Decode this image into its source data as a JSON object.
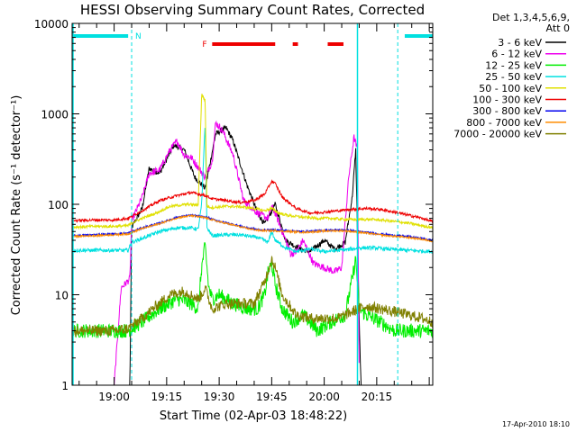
{
  "chart_data": {
    "type": "line",
    "title": "HESSI Observing Summary Count Rates, Corrected",
    "xlabel": "Start Time (02-Apr-03 18:48:22)",
    "ylabel": "Corrected Count Rate (s⁻¹ detector⁻¹)",
    "x_unit": "minutes after 18:48:22",
    "xlim": [
      0,
      103
    ],
    "ylim": [
      1,
      10000
    ],
    "y_scale": "log",
    "grid": false,
    "x_ticks": [
      {
        "t": 12,
        "label": "19:00"
      },
      {
        "t": 27,
        "label": "19:15"
      },
      {
        "t": 42,
        "label": "19:30"
      },
      {
        "t": 57,
        "label": "19:45"
      },
      {
        "t": 72,
        "label": "20:00"
      },
      {
        "t": 87,
        "label": "20:15"
      }
    ],
    "y_ticks": [
      {
        "v": 1,
        "label": "1"
      },
      {
        "v": 10,
        "label": "10"
      },
      {
        "v": 100,
        "label": "100"
      },
      {
        "v": 1000,
        "label": "1000"
      },
      {
        "v": 10000,
        "label": "10000"
      }
    ],
    "legend_header": [
      "Det 1,3,4,5,6,9,",
      "Att 0"
    ],
    "legend_position": "right",
    "annotations": {
      "night_label": "N",
      "flare_label": "F",
      "night_bars": [
        [
          0,
          16
        ],
        [
          95,
          103
        ]
      ],
      "night_color": "#00e0e0",
      "night_boundaries": [
        17,
        93
      ],
      "flare_bars": [
        [
          40,
          58
        ],
        [
          63,
          64.5
        ],
        [
          73,
          77.5
        ]
      ],
      "flare_color": "#ee0000"
    },
    "footer_timestamp": "17-Apr-2010 18:10",
    "series": [
      {
        "name": "3 - 6 keV",
        "color": "#000000",
        "x": [
          0,
          6,
          12,
          16.5,
          17,
          20,
          22,
          25,
          29,
          32,
          35,
          38,
          41,
          44,
          46,
          50,
          53,
          55,
          58,
          61,
          65,
          68,
          72,
          75,
          78,
          80,
          81,
          82,
          82.5,
          84,
          88,
          92,
          96,
          100,
          103
        ],
        "y": [
          1,
          1,
          1,
          1,
          55,
          90,
          250,
          220,
          450,
          400,
          200,
          150,
          600,
          700,
          500,
          160,
          80,
          60,
          100,
          40,
          32,
          30,
          40,
          32,
          38,
          120,
          400,
          5,
          1,
          1,
          1,
          1,
          1,
          1,
          1
        ]
      },
      {
        "name": "6 - 12 keV",
        "color": "#ee00ee",
        "x": [
          12,
          14,
          15,
          16.5,
          17,
          20,
          22,
          25,
          28,
          30,
          32,
          34,
          38,
          40,
          41,
          43,
          46,
          49,
          53,
          56,
          57,
          58,
          61,
          62.5,
          64,
          66,
          69,
          72,
          75,
          77,
          79,
          80.5,
          81.5,
          82
        ],
        "y": [
          1,
          12,
          13,
          15,
          65,
          120,
          220,
          240,
          400,
          500,
          350,
          330,
          200,
          300,
          800,
          650,
          350,
          110,
          80,
          70,
          95,
          80,
          40,
          28,
          30,
          40,
          22,
          20,
          18,
          20,
          200,
          550,
          400,
          1
        ]
      },
      {
        "name": "12 - 25 keV",
        "color": "#00ee00",
        "x": [
          0,
          10,
          16,
          20,
          25,
          30,
          34,
          36,
          37,
          38,
          39,
          40,
          42,
          46,
          50,
          53,
          55,
          56,
          57,
          58,
          60,
          63,
          66,
          70,
          74,
          78,
          80,
          81,
          82,
          84,
          88,
          92,
          96,
          100,
          103
        ],
        "y": [
          4,
          4,
          4,
          5,
          7,
          9,
          8,
          7,
          20,
          35,
          12,
          9,
          10,
          8,
          7,
          7,
          10,
          18,
          22,
          13,
          7,
          5,
          6,
          4,
          5,
          6,
          15,
          25,
          7,
          6,
          5,
          4,
          4,
          4,
          4
        ]
      },
      {
        "name": "25 - 50 keV",
        "color": "#00e0e0",
        "x": [
          0,
          6,
          12,
          16,
          17,
          20,
          25,
          30,
          34,
          36,
          37,
          38,
          38.5,
          40,
          44,
          48,
          53,
          56,
          57,
          58,
          61,
          64,
          68,
          72,
          76,
          80,
          82,
          86,
          90,
          96,
          103
        ],
        "y": [
          31,
          31,
          31,
          31,
          38,
          42,
          50,
          55,
          55,
          53,
          100,
          850,
          55,
          45,
          46,
          46,
          43,
          38,
          50,
          40,
          33,
          30,
          32,
          30,
          31,
          32,
          33,
          33,
          32,
          31,
          30
        ]
      },
      {
        "name": "50 - 100 keV",
        "color": "#e0e000",
        "x": [
          0,
          6,
          12,
          16,
          17,
          20,
          24,
          28,
          33,
          36,
          37,
          38,
          38.5,
          40,
          44,
          48,
          52,
          55,
          57,
          59,
          62,
          66,
          70,
          74,
          78,
          82,
          86,
          90,
          96,
          103
        ],
        "y": [
          56,
          57,
          57,
          58,
          62,
          70,
          80,
          95,
          100,
          98,
          1650,
          1400,
          95,
          92,
          95,
          94,
          90,
          85,
          90,
          80,
          75,
          72,
          70,
          70,
          68,
          68,
          68,
          66,
          62,
          55
        ]
      },
      {
        "name": "100 - 300 keV",
        "color": "#ee0000",
        "x": [
          0,
          6,
          12,
          16,
          20,
          25,
          30,
          34,
          36,
          38,
          40,
          44,
          48,
          52,
          55,
          57,
          58,
          60,
          64,
          68,
          72,
          76,
          80,
          84,
          88,
          92,
          96,
          100,
          103
        ],
        "y": [
          66,
          67,
          67,
          70,
          85,
          110,
          125,
          135,
          130,
          125,
          115,
          110,
          105,
          110,
          130,
          180,
          170,
          120,
          90,
          80,
          82,
          85,
          88,
          90,
          88,
          82,
          76,
          70,
          64
        ]
      },
      {
        "name": "300 - 800 keV",
        "color": "#0000ee",
        "x": [
          0,
          6,
          12,
          16,
          20,
          25,
          30,
          34,
          38,
          42,
          46,
          50,
          54,
          58,
          62,
          66,
          70,
          74,
          78,
          82,
          86,
          90,
          96,
          100,
          103
        ],
        "y": [
          45,
          46,
          47,
          48,
          55,
          62,
          72,
          76,
          72,
          65,
          60,
          55,
          52,
          52,
          51,
          50,
          51,
          52,
          52,
          50,
          48,
          46,
          44,
          42,
          40
        ]
      },
      {
        "name": "800 - 7000 keV",
        "color": "#ff8c00",
        "x": [
          0,
          6,
          12,
          16,
          20,
          25,
          30,
          34,
          38,
          42,
          46,
          50,
          54,
          58,
          62,
          66,
          70,
          74,
          78,
          82,
          86,
          90,
          96,
          100,
          103
        ],
        "y": [
          44,
          45,
          46,
          47,
          54,
          61,
          71,
          75,
          71,
          64,
          59,
          54,
          51,
          51,
          50,
          49,
          50,
          51,
          51,
          49,
          47,
          45,
          43,
          41,
          39
        ]
      },
      {
        "name": "7000 - 20000 keV",
        "color": "#808000",
        "x": [
          0,
          6,
          12,
          16,
          20,
          24,
          28,
          32,
          36,
          37,
          38,
          39,
          40,
          44,
          48,
          52,
          55,
          57,
          58,
          60,
          64,
          68,
          72,
          76,
          80,
          84,
          88,
          92,
          96,
          100,
          103
        ],
        "y": [
          4,
          4,
          4,
          4.2,
          5.5,
          7.5,
          10,
          11,
          9,
          10,
          12,
          9,
          7,
          8,
          8,
          8,
          14,
          25,
          20,
          10,
          6,
          5.5,
          5.5,
          5.5,
          6.5,
          7.5,
          7,
          6.5,
          6,
          5.5,
          5
        ]
      }
    ]
  }
}
